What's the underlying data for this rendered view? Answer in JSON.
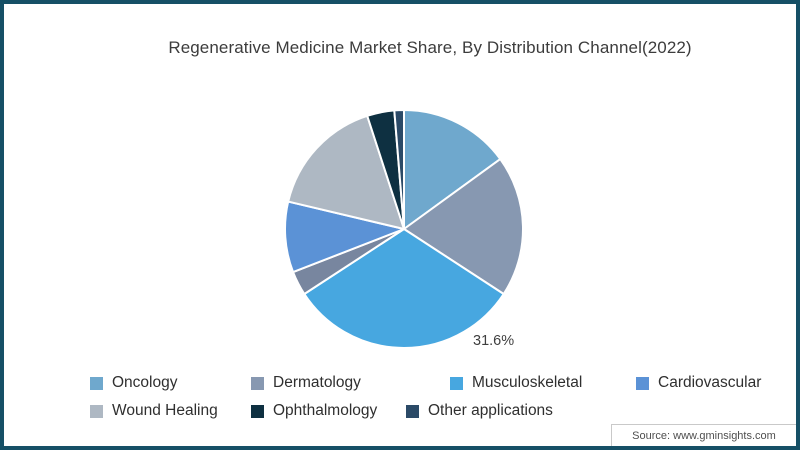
{
  "frame": {
    "border_color": "#165066",
    "background": "#ffffff"
  },
  "title": "Regenerative Medicine Market Share, By Distribution Channel(2022)",
  "chart_data": {
    "type": "pie",
    "title": "Regenerative Medicine Market Share, By Distribution Channel(2022)",
    "unit": "percent",
    "direction": "clockwise",
    "start_angle_deg": 0,
    "labeled_value": "31.6%",
    "slices": [
      {
        "name": "Oncology",
        "value": 15.0,
        "color": "#6fa8cd"
      },
      {
        "name": "Dermatology",
        "value": 19.2,
        "color": "#8798b1"
      },
      {
        "name": "Musculoskeletal",
        "value": 31.6,
        "color": "#47a7e0",
        "label": "31.6%"
      },
      {
        "name": "",
        "value": 3.3,
        "color": "#78869f"
      },
      {
        "name": "Cardiovascular",
        "value": 9.6,
        "color": "#5b92d6"
      },
      {
        "name": "Wound Healing",
        "value": 16.3,
        "color": "#aeb8c3"
      },
      {
        "name": "Ophthalmology",
        "value": 3.7,
        "color": "#0e3041"
      },
      {
        "name": "Other applications",
        "value": 1.3,
        "color": "#2b4a67"
      }
    ],
    "legend": [
      {
        "label": "Oncology",
        "color": "#6fa8cd"
      },
      {
        "label": "Dermatology",
        "color": "#8798b1"
      },
      {
        "label": "Musculoskeletal",
        "color": "#47a7e0"
      },
      {
        "label": "Cardiovascular",
        "color": "#5b92d6"
      },
      {
        "label": "Wound Healing",
        "color": "#aeb8c3"
      },
      {
        "label": "Ophthalmology",
        "color": "#0e3041"
      },
      {
        "label": "Other applications",
        "color": "#2b4a67"
      }
    ],
    "legend_position": "bottom-left two rows"
  },
  "source": "Source: www.gminsights.com"
}
